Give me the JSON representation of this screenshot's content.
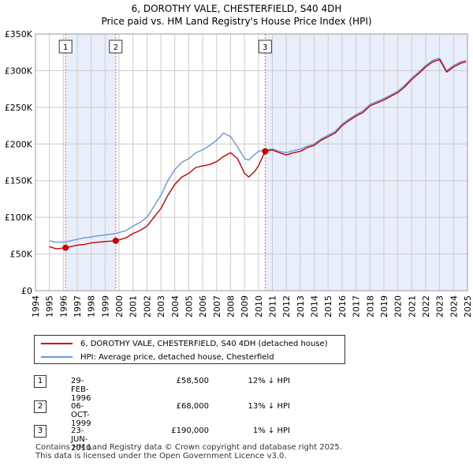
{
  "title": {
    "line1": "6, DOROTHY VALE, CHESTERFIELD, S40 4DH",
    "line2": "Price paid vs. HM Land Registry's House Price Index (HPI)"
  },
  "colors": {
    "price": "#cc0000",
    "hpi": "#6699dd",
    "marker_line": "#dd6677",
    "shade": "#e8eefa",
    "grid": "#cccccc"
  },
  "legend": {
    "price_label": "6, DOROTHY VALE, CHESTERFIELD, S40 4DH (detached house)",
    "hpi_label": "HPI: Average price, detached house, Chesterfield"
  },
  "sales": [
    {
      "num": "1",
      "date": "29-FEB-1996",
      "price": "£58,500",
      "hpi": "12% ↓ HPI"
    },
    {
      "num": "2",
      "date": "06-OCT-1999",
      "price": "£68,000",
      "hpi": "13% ↓ HPI"
    },
    {
      "num": "3",
      "date": "23-JUN-2010",
      "price": "£190,000",
      "hpi": "1% ↓ HPI"
    }
  ],
  "footer": {
    "line1": "Contains HM Land Registry data © Crown copyright and database right 2025.",
    "line2": "This data is licensed under the Open Government Licence v3.0."
  },
  "chart_data": {
    "type": "line",
    "title": "Price paid vs. HM Land Registry's House Price Index (HPI)",
    "xlim": [
      1994,
      2025
    ],
    "ylim": [
      0,
      350000
    ],
    "y_ticks": [
      0,
      50000,
      100000,
      150000,
      200000,
      250000,
      300000,
      350000
    ],
    "y_tick_labels": [
      "£0",
      "£50K",
      "£100K",
      "£150K",
      "£200K",
      "£250K",
      "£300K",
      "£350K"
    ],
    "x_ticks": [
      1994,
      1995,
      1996,
      1997,
      1998,
      1999,
      2000,
      2001,
      2002,
      2003,
      2004,
      2005,
      2006,
      2007,
      2008,
      2009,
      2010,
      2011,
      2012,
      2013,
      2014,
      2015,
      2016,
      2017,
      2018,
      2019,
      2020,
      2021,
      2022,
      2023,
      2024,
      2025
    ],
    "x_tick_labels": [
      "1994",
      "1995",
      "1996",
      "1997",
      "1998",
      "1999",
      "2000",
      "2001",
      "2002",
      "2003",
      "2004",
      "2005",
      "2006",
      "2007",
      "2008",
      "2009",
      "2010",
      "2011",
      "2012",
      "2013",
      "2014",
      "2015",
      "2016",
      "2017",
      "2018",
      "2019",
      "2020",
      "2021",
      "2022",
      "2023",
      "2024",
      "2025"
    ],
    "series": [
      {
        "name": "6, DOROTHY VALE, CHESTERFIELD, S40 4DH (detached house)",
        "x": [
          1995.0,
          1995.5,
          1996.16,
          1996.5,
          1997.0,
          1997.5,
          1998.0,
          1998.5,
          1999.0,
          1999.76,
          2000.5,
          2001.0,
          2001.5,
          2002.0,
          2002.5,
          2003.0,
          2003.5,
          2004.0,
          2004.5,
          2005.0,
          2005.5,
          2006.0,
          2006.5,
          2007.0,
          2007.5,
          2008.0,
          2008.5,
          2009.0,
          2009.3,
          2009.7,
          2010.0,
          2010.48,
          2011.0,
          2011.5,
          2012.0,
          2012.5,
          2013.0,
          2013.5,
          2014.0,
          2014.5,
          2015.0,
          2015.5,
          2016.0,
          2016.5,
          2017.0,
          2017.5,
          2018.0,
          2018.5,
          2019.0,
          2019.5,
          2020.0,
          2020.5,
          2021.0,
          2021.5,
          2022.0,
          2022.5,
          2023.0,
          2023.5,
          2024.0,
          2024.5,
          2024.9
        ],
        "y": [
          60000,
          57000,
          58500,
          60000,
          62000,
          63000,
          65000,
          66000,
          67000,
          68000,
          72000,
          78000,
          82000,
          88000,
          100000,
          112000,
          130000,
          145000,
          155000,
          160000,
          168000,
          170000,
          172000,
          176000,
          183000,
          188000,
          180000,
          160000,
          155000,
          162000,
          170000,
          190000,
          192000,
          188000,
          185000,
          188000,
          190000,
          195000,
          198000,
          205000,
          210000,
          215000,
          225000,
          232000,
          238000,
          243000,
          252000,
          256000,
          260000,
          265000,
          270000,
          278000,
          288000,
          296000,
          305000,
          312000,
          315000,
          298000,
          305000,
          310000,
          312000
        ]
      },
      {
        "name": "HPI: Average price, detached house, Chesterfield",
        "x": [
          1995.0,
          1995.5,
          1996.16,
          1996.5,
          1997.0,
          1997.5,
          1998.0,
          1998.5,
          1999.0,
          1999.76,
          2000.5,
          2001.0,
          2001.5,
          2002.0,
          2002.5,
          2003.0,
          2003.5,
          2004.0,
          2004.5,
          2005.0,
          2005.5,
          2006.0,
          2006.5,
          2007.0,
          2007.5,
          2008.0,
          2008.5,
          2009.0,
          2009.3,
          2009.7,
          2010.0,
          2010.48,
          2011.0,
          2011.5,
          2012.0,
          2012.5,
          2013.0,
          2013.5,
          2014.0,
          2014.5,
          2015.0,
          2015.5,
          2016.0,
          2016.5,
          2017.0,
          2017.5,
          2018.0,
          2018.5,
          2019.0,
          2019.5,
          2020.0,
          2020.5,
          2021.0,
          2021.5,
          2022.0,
          2022.5,
          2023.0,
          2023.5,
          2024.0,
          2024.5,
          2024.9
        ],
        "y": [
          68000,
          66000,
          66500,
          68000,
          70000,
          72000,
          73000,
          75000,
          76000,
          78000,
          82000,
          88000,
          93000,
          100000,
          115000,
          130000,
          150000,
          165000,
          175000,
          180000,
          188000,
          192000,
          198000,
          205000,
          215000,
          210000,
          196000,
          180000,
          178000,
          185000,
          190000,
          192000,
          193000,
          190000,
          188000,
          191000,
          193000,
          197000,
          200000,
          207000,
          212000,
          217000,
          227000,
          234000,
          240000,
          245000,
          254000,
          258000,
          262000,
          267000,
          272000,
          280000,
          290000,
          298000,
          307000,
          314000,
          317000,
          300000,
          307000,
          312000,
          314000
        ]
      }
    ],
    "markers": [
      {
        "label": "1",
        "x": 1996.16,
        "y": 58500
      },
      {
        "label": "2",
        "x": 1999.76,
        "y": 68000
      },
      {
        "label": "3",
        "x": 2010.48,
        "y": 190000
      }
    ],
    "shaded_ranges": [
      [
        1996.16,
        1999.76
      ],
      [
        2010.48,
        2025
      ]
    ]
  }
}
